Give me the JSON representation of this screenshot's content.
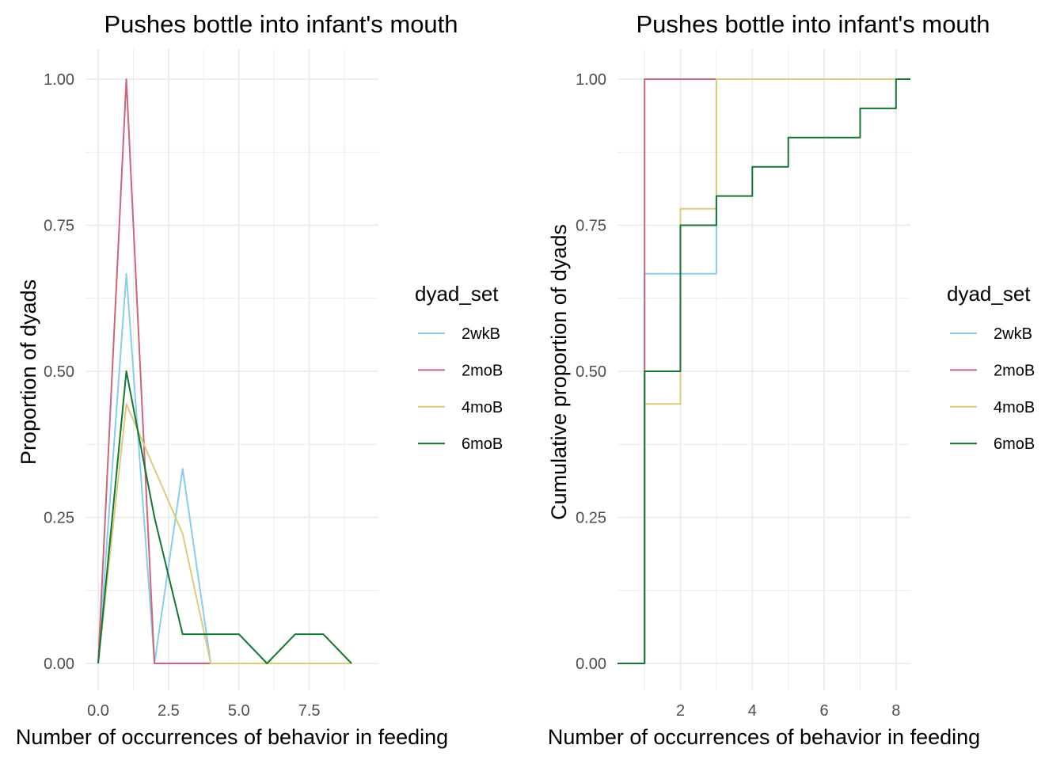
{
  "colors": {
    "2wkB": "#88CCEE",
    "2moB": "#CC6677",
    "4moB": "#DDCC77",
    "6moB": "#117733",
    "grid": "#ebebeb",
    "tick": "#4d4d4d"
  },
  "legend": {
    "title": "dyad_set",
    "entries": [
      "2wkB",
      "2moB",
      "4moB",
      "6moB"
    ]
  },
  "chart_data": [
    {
      "type": "line",
      "title": "Pushes bottle into infant's mouth",
      "xlabel": "Number of occurrences of behavior in feeding",
      "ylabel": "Proportion of dyads",
      "xlim": [
        0,
        9
      ],
      "ylim": [
        0,
        1
      ],
      "x_ticks": [
        "0.0",
        "2.5",
        "5.0",
        "7.5"
      ],
      "x_tick_values": [
        0,
        2.5,
        5,
        7.5
      ],
      "y_ticks": [
        "0.00",
        "0.25",
        "0.50",
        "0.75",
        "1.00"
      ],
      "y_tick_values": [
        0,
        0.25,
        0.5,
        0.75,
        1
      ],
      "grid": true,
      "legend_position": "right",
      "series": [
        {
          "name": "2wkB",
          "x": [
            0,
            1,
            2,
            3,
            4
          ],
          "y": [
            0,
            0.667,
            0,
            0.333,
            0
          ]
        },
        {
          "name": "2moB",
          "x": [
            0,
            1,
            2,
            3,
            4
          ],
          "y": [
            0,
            1,
            0,
            0,
            0
          ]
        },
        {
          "name": "4moB",
          "x": [
            0,
            1,
            2,
            3,
            4,
            5,
            6,
            7,
            8,
            9
          ],
          "y": [
            0,
            0.444,
            0.333,
            0.222,
            0,
            0,
            0,
            0,
            0,
            0
          ]
        },
        {
          "name": "6moB",
          "x": [
            0,
            1,
            2,
            3,
            4,
            5,
            6,
            7,
            8,
            9
          ],
          "y": [
            0,
            0.5,
            0.25,
            0.05,
            0.05,
            0.05,
            0,
            0.05,
            0.05,
            0
          ]
        }
      ]
    },
    {
      "type": "step",
      "title": "Pushes bottle into infant's mouth",
      "xlabel": "Number of occurrences of behavior in feeding",
      "ylabel": "Cumulative proportion of dyads",
      "xlim": [
        0.6,
        8.4
      ],
      "ylim": [
        0,
        1
      ],
      "x_ticks": [
        "2",
        "4",
        "6",
        "8"
      ],
      "x_tick_values": [
        2,
        4,
        6,
        8
      ],
      "y_ticks": [
        "0.00",
        "0.25",
        "0.50",
        "0.75",
        "1.00"
      ],
      "y_tick_values": [
        0,
        0.25,
        0.5,
        0.75,
        1
      ],
      "grid": true,
      "legend_position": "right",
      "series": [
        {
          "name": "2wkB",
          "x": [
            1,
            3
          ],
          "y": [
            0.667,
            1
          ]
        },
        {
          "name": "2moB",
          "x": [
            1
          ],
          "y": [
            1
          ]
        },
        {
          "name": "4moB",
          "x": [
            1,
            2,
            3
          ],
          "y": [
            0.444,
            0.778,
            1
          ]
        },
        {
          "name": "6moB",
          "x": [
            1,
            2,
            3,
            4,
            5,
            7,
            8
          ],
          "y": [
            0.5,
            0.75,
            0.8,
            0.85,
            0.9,
            0.95,
            1
          ]
        }
      ]
    }
  ]
}
